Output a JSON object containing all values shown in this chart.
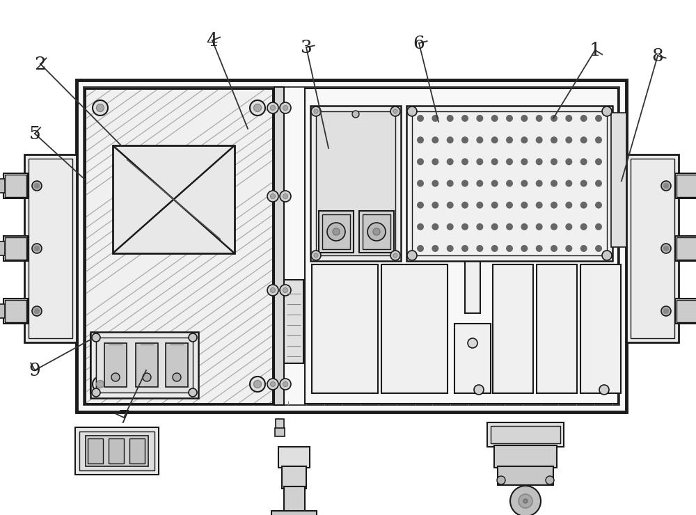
{
  "bg_color": "#ffffff",
  "lc": "#1a1a1a",
  "fig_w": 10.0,
  "fig_h": 7.4,
  "dpi": 100,
  "labels_info": [
    [
      "1",
      855,
      72,
      795,
      170
    ],
    [
      "2",
      58,
      92,
      175,
      210
    ],
    [
      "3",
      440,
      68,
      472,
      213
    ],
    [
      "4",
      305,
      58,
      356,
      185
    ],
    [
      "5",
      50,
      192,
      122,
      258
    ],
    [
      "6",
      602,
      62,
      630,
      175
    ],
    [
      "7",
      178,
      600,
      210,
      532
    ],
    [
      "8",
      945,
      80,
      893,
      260
    ],
    [
      "9",
      50,
      532,
      130,
      488
    ]
  ]
}
